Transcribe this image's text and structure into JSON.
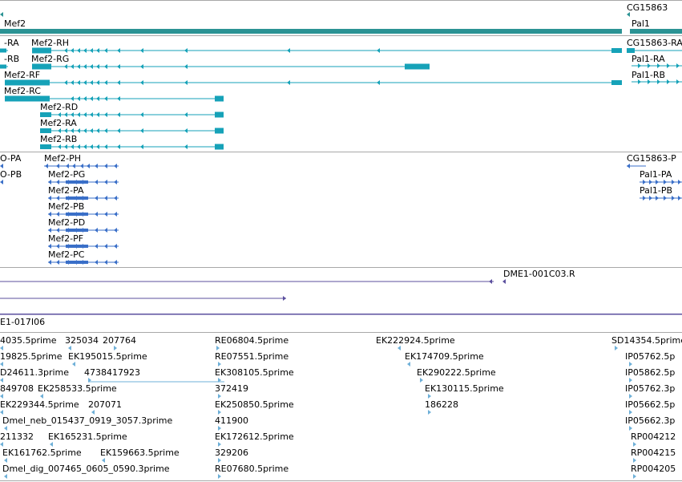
{
  "colors": {
    "gene": "#2b9394",
    "transcript": "#16a2b8",
    "protein": "#3a6fc8",
    "clone": "#5b4f9e",
    "est": "#6fb0d8",
    "separator": "#a8a8a8"
  },
  "gene_track": {
    "labels": [
      "Mef2",
      "CG15863",
      "Pal1"
    ]
  },
  "transcript_track": {
    "labels": [
      "-RA",
      "-RB",
      "Mef2-RH",
      "Mef2-RG",
      "Mef2-RF",
      "Mef2-RC",
      "Mef2-RD",
      "Mef2-RA",
      "Mef2-RB",
      "CG15863-RA",
      "Pal1-RA",
      "Pal1-RB"
    ]
  },
  "protein_track": {
    "labels": [
      "O-PA",
      "O-PB",
      "Mef2-PH",
      "Mef2-PG",
      "Mef2-PA",
      "Mef2-PB",
      "Mef2-PD",
      "Mef2-PF",
      "Mef2-PC",
      "CG15863-P",
      "Pal1-PA",
      "Pal1-PB"
    ]
  },
  "clone_track": {
    "labels": [
      "DME1-001C03.R",
      "E1-017I06"
    ]
  },
  "est_track": {
    "labels": [
      "4035.5prime",
      "325034",
      "207764",
      "RE06804.5prime",
      "EK222924.5prime",
      "SD14354.5prime",
      "19825.5prime",
      "EK195015.5prime",
      "RE07551.5prime",
      "EK174709.5prime",
      "IP05762.5p",
      "D24611.3prime",
      "4738417923",
      "EK308105.5prime",
      "EK290222.5prime",
      "IP05862.5p",
      "849708",
      "EK258533.5prime",
      "372419",
      "EK130115.5prime",
      "IP05762.3p",
      "EK229344.5prime",
      "207071",
      "EK250850.5prime",
      "186228",
      "IP05662.5p",
      "Dmel_neb_015437_0919_3057.3prime",
      "411900",
      "IP05662.3p",
      "211332",
      "EK165231.5prime",
      "EK172612.5prime",
      "RP004212",
      "EK161762.5prime",
      "EK159663.5prime",
      "329206",
      "RP004215",
      "Dmel_dig_007465_0605_0590.3prime",
      "RE07680.5prime",
      "RP004205"
    ]
  }
}
